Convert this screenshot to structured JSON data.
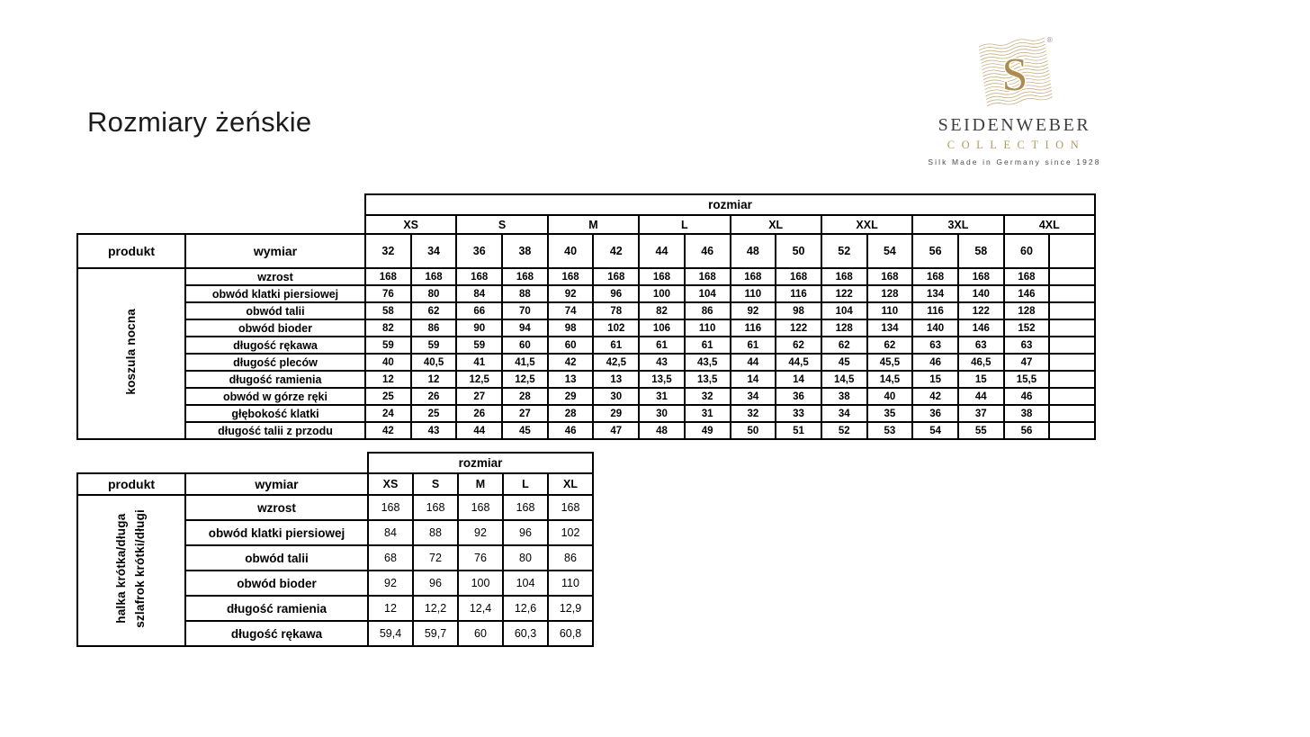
{
  "page": {
    "title": "Rozmiary żeńskie"
  },
  "logo": {
    "monogram_letter": "S",
    "registered_mark": "®",
    "brand": "SEIDENWEBER",
    "sub": "COLLECTION",
    "tagline": "Silk Made in Germany since 1928",
    "gold": "#b6995c",
    "dark": "#3d3d3d"
  },
  "table1": {
    "size_header": "rozmiar",
    "product_header": "produkt",
    "measure_header": "wymiar",
    "product_label": "koszula nocna",
    "size_groups": [
      "XS",
      "S",
      "M",
      "L",
      "XL",
      "XXL",
      "3XL",
      "4XL"
    ],
    "sizes": [
      "32",
      "34",
      "36",
      "38",
      "40",
      "42",
      "44",
      "46",
      "48",
      "50",
      "52",
      "54",
      "56",
      "58",
      "60",
      ""
    ],
    "rows": [
      {
        "label": "wzrost",
        "values": [
          "168",
          "168",
          "168",
          "168",
          "168",
          "168",
          "168",
          "168",
          "168",
          "168",
          "168",
          "168",
          "168",
          "168",
          "168",
          ""
        ]
      },
      {
        "label": "obwód klatki piersiowej",
        "values": [
          "76",
          "80",
          "84",
          "88",
          "92",
          "96",
          "100",
          "104",
          "110",
          "116",
          "122",
          "128",
          "134",
          "140",
          "146",
          ""
        ]
      },
      {
        "label": "obwód talii",
        "values": [
          "58",
          "62",
          "66",
          "70",
          "74",
          "78",
          "82",
          "86",
          "92",
          "98",
          "104",
          "110",
          "116",
          "122",
          "128",
          ""
        ]
      },
      {
        "label": "obwód bioder",
        "values": [
          "82",
          "86",
          "90",
          "94",
          "98",
          "102",
          "106",
          "110",
          "116",
          "122",
          "128",
          "134",
          "140",
          "146",
          "152",
          ""
        ]
      },
      {
        "label": "długość rękawa",
        "values": [
          "59",
          "59",
          "59",
          "60",
          "60",
          "61",
          "61",
          "61",
          "61",
          "62",
          "62",
          "62",
          "63",
          "63",
          "63",
          ""
        ]
      },
      {
        "label": "długość pleców",
        "values": [
          "40",
          "40,5",
          "41",
          "41,5",
          "42",
          "42,5",
          "43",
          "43,5",
          "44",
          "44,5",
          "45",
          "45,5",
          "46",
          "46,5",
          "47",
          ""
        ]
      },
      {
        "label": "długość ramienia",
        "values": [
          "12",
          "12",
          "12,5",
          "12,5",
          "13",
          "13",
          "13,5",
          "13,5",
          "14",
          "14",
          "14,5",
          "14,5",
          "15",
          "15",
          "15,5",
          ""
        ]
      },
      {
        "label": "obwód w górze ręki",
        "values": [
          "25",
          "26",
          "27",
          "28",
          "29",
          "30",
          "31",
          "32",
          "34",
          "36",
          "38",
          "40",
          "42",
          "44",
          "46",
          ""
        ]
      },
      {
        "label": "głębokość klatki",
        "values": [
          "24",
          "25",
          "26",
          "27",
          "28",
          "29",
          "30",
          "31",
          "32",
          "33",
          "34",
          "35",
          "36",
          "37",
          "38",
          ""
        ]
      },
      {
        "label": "długość talii z przodu",
        "values": [
          "42",
          "43",
          "44",
          "45",
          "46",
          "47",
          "48",
          "49",
          "50",
          "51",
          "52",
          "53",
          "54",
          "55",
          "56",
          ""
        ]
      }
    ]
  },
  "table2": {
    "size_header": "rozmiar",
    "product_header": "produkt",
    "measure_header": "wymiar",
    "product_label": "halka krótka/długa\nszlafrok krótki/długi",
    "sizes": [
      "XS",
      "S",
      "M",
      "L",
      "XL"
    ],
    "rows": [
      {
        "label": "wzrost",
        "values": [
          "168",
          "168",
          "168",
          "168",
          "168"
        ]
      },
      {
        "label": "obwód klatki piersiowej",
        "values": [
          "84",
          "88",
          "92",
          "96",
          "102"
        ]
      },
      {
        "label": "obwód talii",
        "values": [
          "68",
          "72",
          "76",
          "80",
          "86"
        ]
      },
      {
        "label": "obwód bioder",
        "values": [
          "92",
          "96",
          "100",
          "104",
          "110"
        ]
      },
      {
        "label": "długość ramienia",
        "values": [
          "12",
          "12,2",
          "12,4",
          "12,6",
          "12,9"
        ]
      },
      {
        "label": "długość rękawa",
        "values": [
          "59,4",
          "59,7",
          "60",
          "60,3",
          "60,8"
        ]
      }
    ]
  }
}
